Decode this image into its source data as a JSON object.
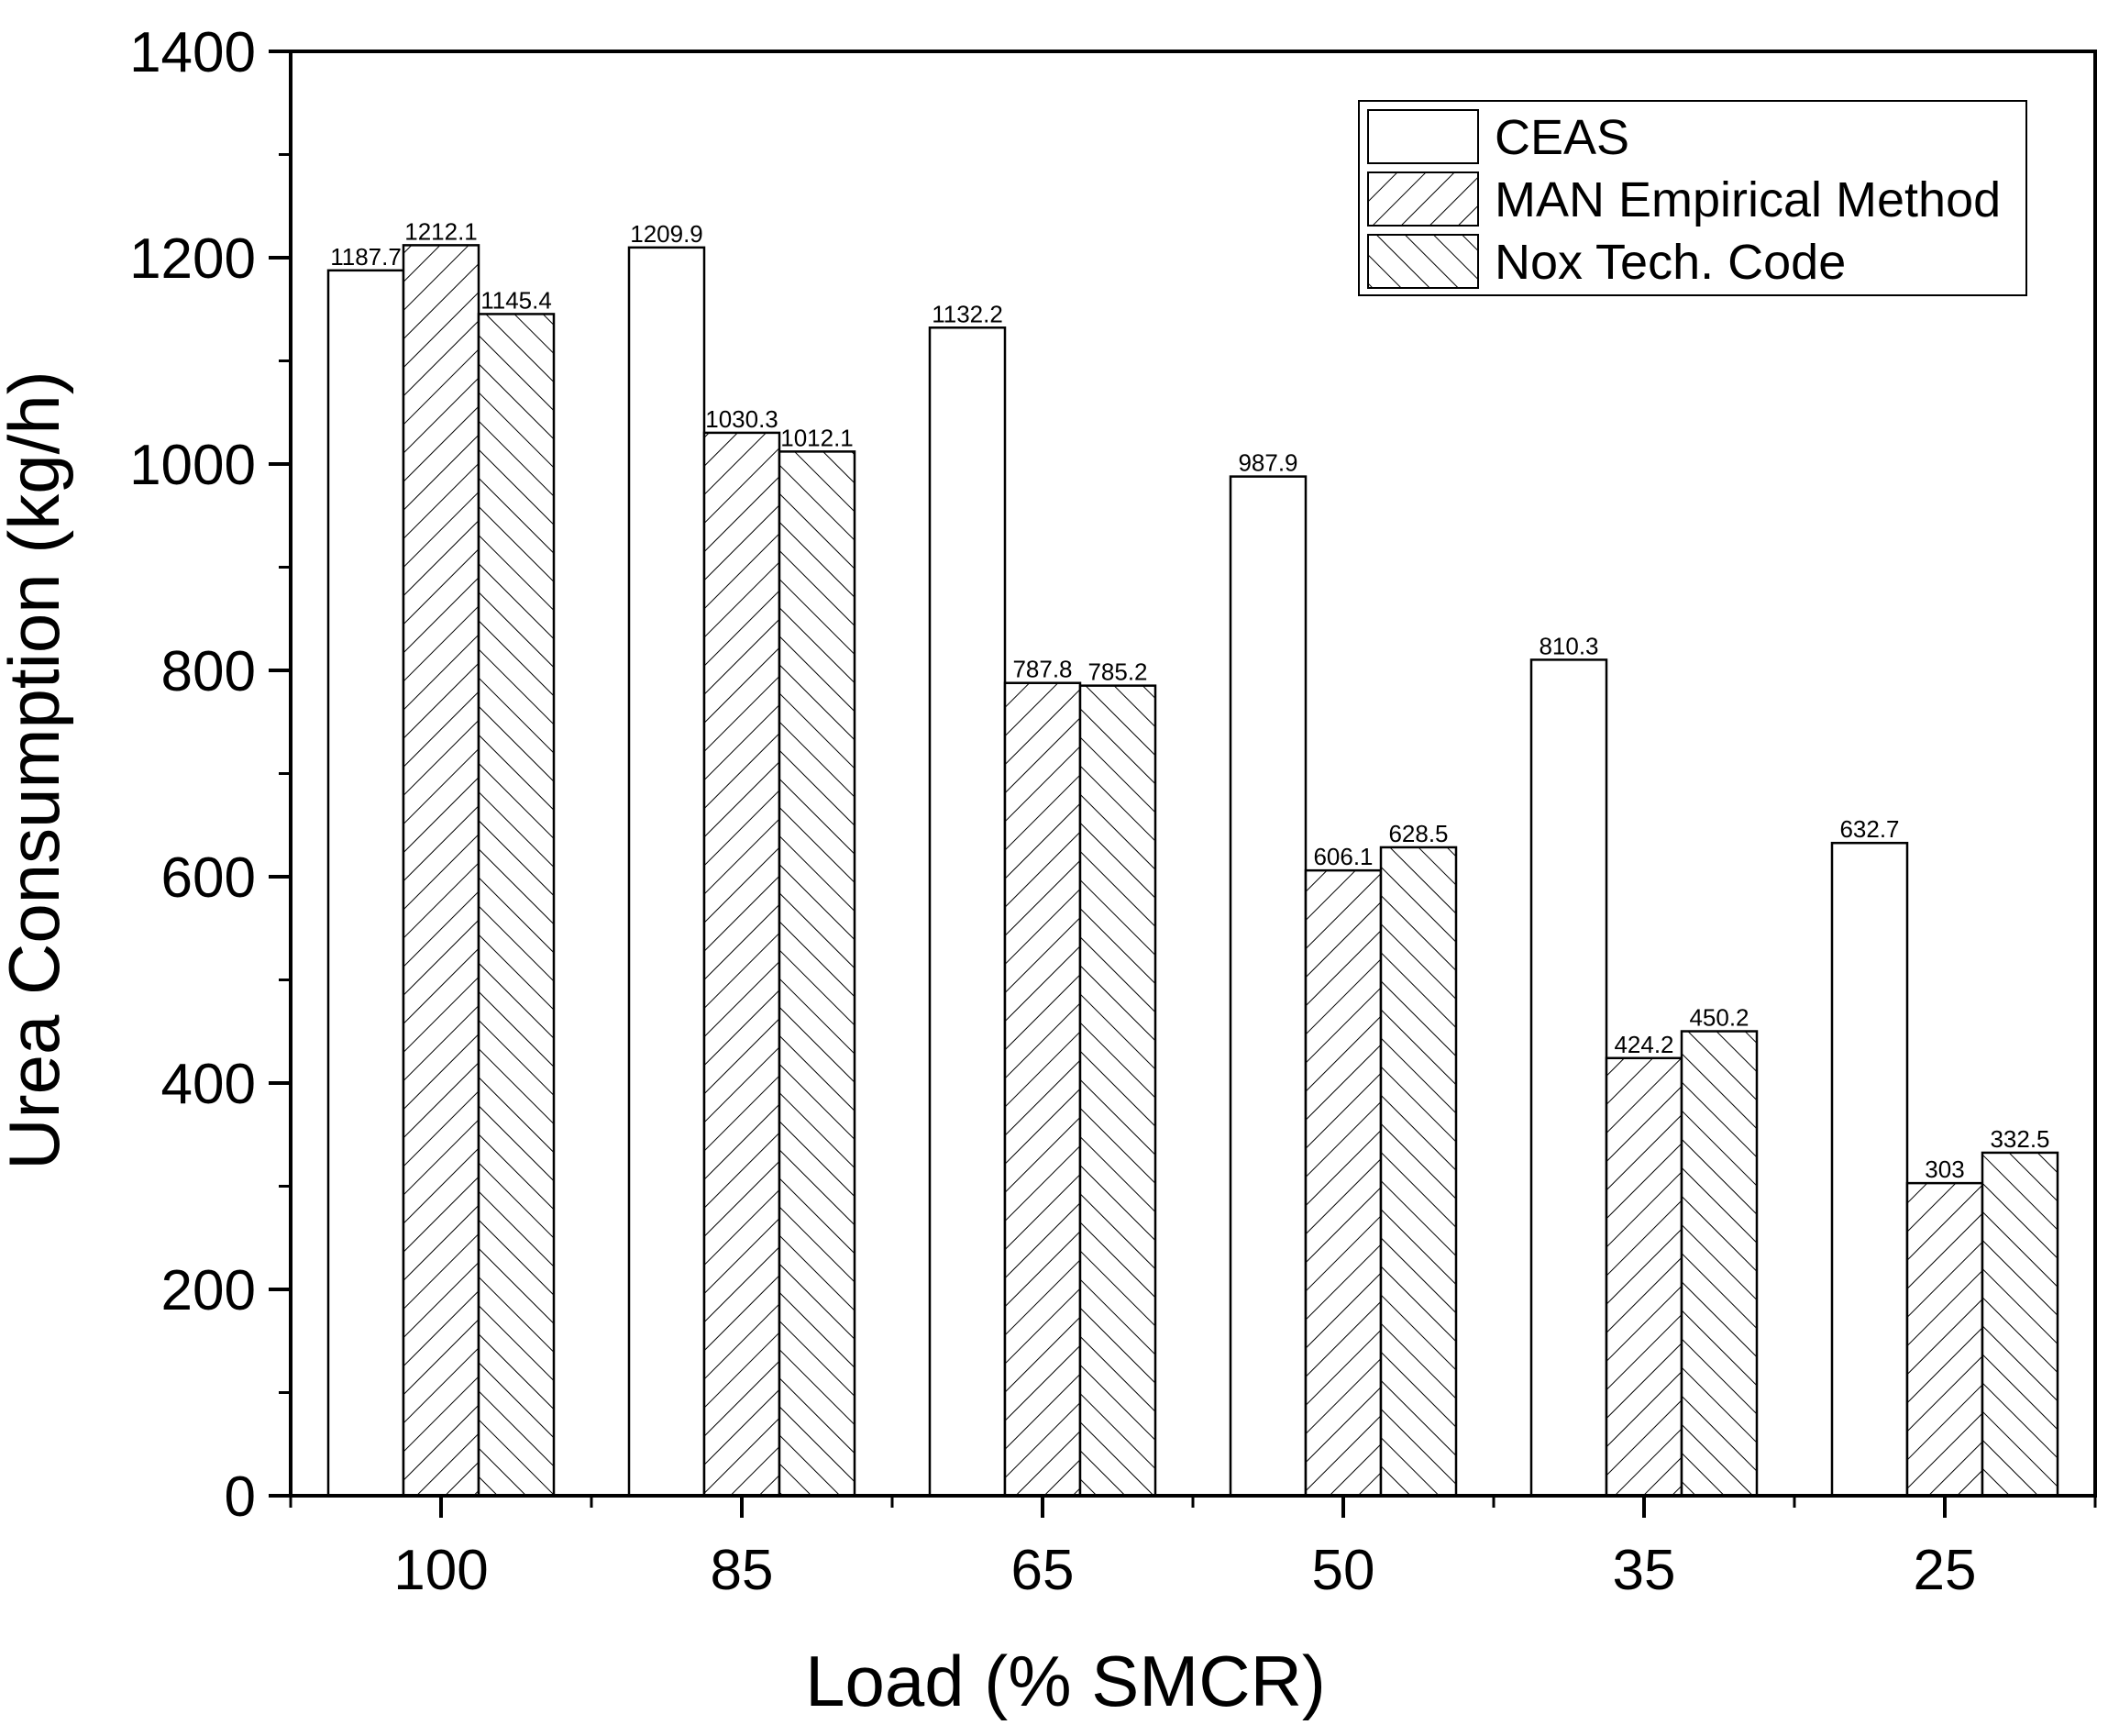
{
  "chart_data": {
    "type": "bar",
    "title": "",
    "xlabel": "Load (% SMCR)",
    "ylabel": "Urea Consumption (kg/h)",
    "categories": [
      "100",
      "85",
      "65",
      "50",
      "35",
      "25"
    ],
    "ylim": [
      0,
      1400
    ],
    "yticks": [
      0,
      200,
      400,
      600,
      800,
      1000,
      1200,
      1400
    ],
    "ytick_labels": [
      "0",
      "200",
      "400",
      "600",
      "800",
      "1000",
      "1200",
      "1400"
    ],
    "grid": false,
    "legend_position": "top-right",
    "series": [
      {
        "name": "CEAS",
        "pattern": "none",
        "values": [
          1187.7,
          1209.9,
          1132.2,
          987.9,
          810.3,
          632.7
        ],
        "labels": [
          "1187.7",
          "1209.9",
          "1132.2",
          "987.9",
          "810.3",
          "632.7"
        ]
      },
      {
        "name": "MAN Empirical Method",
        "pattern": "forward-hatch",
        "values": [
          1212.1,
          1030.3,
          787.8,
          606.1,
          424.2,
          303
        ],
        "labels": [
          "1212.1",
          "1030.3",
          "787.8",
          "606.1",
          "424.2",
          "303"
        ]
      },
      {
        "name": "Nox Tech. Code",
        "pattern": "back-hatch",
        "values": [
          1145.4,
          1012.1,
          785.2,
          628.5,
          450.2,
          332.5
        ],
        "labels": [
          "1145.4",
          "1012.1",
          "785.2",
          "628.5",
          "450.2",
          "332.5"
        ]
      }
    ],
    "colors": {
      "bar_fill": "#ffffff",
      "stroke": "#000000"
    }
  }
}
